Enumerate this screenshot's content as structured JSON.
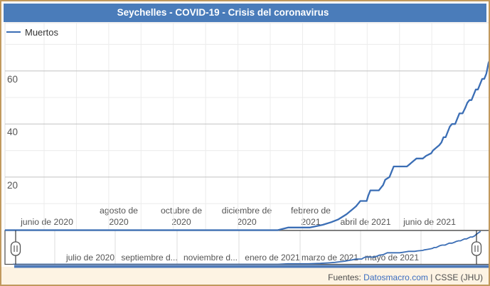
{
  "title": "Seychelles - COVID-19 - Crisis del coronavirus",
  "legend": {
    "label": "Muertos"
  },
  "footer": {
    "prefix": "Fuentes: ",
    "link": "Datosmacro.com",
    "suffix": " | CSSE (JHU)"
  },
  "colors": {
    "title_bar": "#4a7cba",
    "series": "#3b6eb5",
    "frame": "#c1995e",
    "footer_bg": "#fdf3e3",
    "link": "#3a6cc0",
    "navigator_bar": "#4d79b8"
  },
  "chart_data": {
    "type": "line",
    "title": "Seychelles - COVID-19 - Crisis del coronavirus",
    "ylabel": "",
    "xlabel": "",
    "grid": true,
    "legend_position": "top-left",
    "yaxis": {
      "label_ticks": [
        20,
        40,
        60
      ],
      "minor_ticks": [
        10,
        30,
        50,
        70
      ],
      "range": [
        0,
        78
      ]
    },
    "xaxis": {
      "tick_labels": [
        "junio de 2020",
        "agosto de\n2020",
        "octubre de\n2020",
        "diciembre de\n2020",
        "febrero de\n2021",
        "abril de 2021",
        "junio de 2021"
      ]
    },
    "navigator": {
      "tick_labels": [
        "julio de 2020",
        "septiembre d...",
        "noviembre d...",
        "enero de 2021",
        "marzo de 2021",
        "mayo de 2021"
      ]
    },
    "series": [
      {
        "name": "Muertos",
        "color": "#3b6eb5",
        "points": [
          [
            "2020-04-17",
            0
          ],
          [
            "2021-01-08",
            0
          ],
          [
            "2021-01-18",
            1
          ],
          [
            "2021-02-08",
            1
          ],
          [
            "2021-02-20",
            2
          ],
          [
            "2021-02-28",
            3
          ],
          [
            "2021-03-04",
            4
          ],
          [
            "2021-03-08",
            5
          ],
          [
            "2021-03-12",
            6
          ],
          [
            "2021-03-15",
            7
          ],
          [
            "2021-03-18",
            8
          ],
          [
            "2021-03-21",
            9
          ],
          [
            "2021-03-23",
            10
          ],
          [
            "2021-03-25",
            11
          ],
          [
            "2021-03-31",
            11
          ],
          [
            "2021-04-02",
            13
          ],
          [
            "2021-04-04",
            15
          ],
          [
            "2021-04-12",
            15
          ],
          [
            "2021-04-14",
            16
          ],
          [
            "2021-04-16",
            17
          ],
          [
            "2021-04-18",
            19
          ],
          [
            "2021-04-22",
            20
          ],
          [
            "2021-04-24",
            22
          ],
          [
            "2021-04-26",
            24
          ],
          [
            "2021-05-08",
            24
          ],
          [
            "2021-05-11",
            25
          ],
          [
            "2021-05-14",
            26
          ],
          [
            "2021-05-17",
            27
          ],
          [
            "2021-05-23",
            27
          ],
          [
            "2021-05-26",
            28
          ],
          [
            "2021-05-31",
            29
          ],
          [
            "2021-06-02",
            30
          ],
          [
            "2021-06-05",
            31
          ],
          [
            "2021-06-08",
            32
          ],
          [
            "2021-06-10",
            33
          ],
          [
            "2021-06-12",
            35
          ],
          [
            "2021-06-14",
            35
          ],
          [
            "2021-06-16",
            37
          ],
          [
            "2021-06-18",
            39
          ],
          [
            "2021-06-20",
            40
          ],
          [
            "2021-06-23",
            40
          ],
          [
            "2021-06-25",
            42
          ],
          [
            "2021-06-27",
            44
          ],
          [
            "2021-06-30",
            44
          ],
          [
            "2021-07-02",
            46
          ],
          [
            "2021-07-04",
            48
          ],
          [
            "2021-07-06",
            49
          ],
          [
            "2021-07-08",
            49
          ],
          [
            "2021-07-10",
            51
          ],
          [
            "2021-07-12",
            53
          ],
          [
            "2021-07-14",
            53
          ],
          [
            "2021-07-16",
            55
          ],
          [
            "2021-07-18",
            57
          ],
          [
            "2021-07-20",
            57
          ],
          [
            "2021-07-22",
            59
          ],
          [
            "2021-07-23",
            61
          ],
          [
            "2021-07-24",
            63
          ],
          [
            "2021-07-25",
            64
          ],
          [
            "2021-07-26",
            66
          ],
          [
            "2021-07-27",
            67
          ],
          [
            "2021-07-28",
            69
          ]
        ]
      }
    ]
  }
}
